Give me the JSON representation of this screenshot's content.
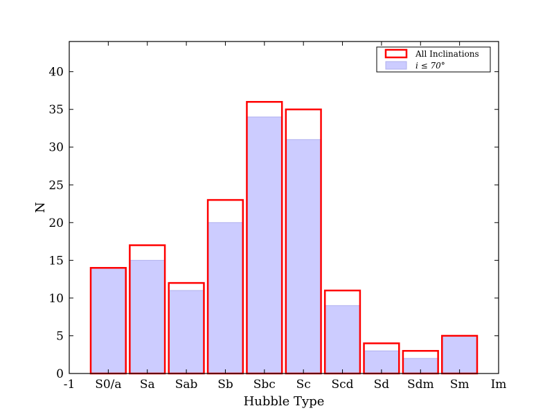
{
  "chart_data": {
    "type": "bar",
    "title": "",
    "xlabel": "Hubble Type",
    "ylabel": "N",
    "x_ticks": [
      "-1",
      "S0/a",
      "Sa",
      "Sab",
      "Sb",
      "Sbc",
      "Sc",
      "Scd",
      "Sd",
      "Sdm",
      "Sm",
      "Im"
    ],
    "categories": [
      "S0/a",
      "Sa",
      "Sab",
      "Sb",
      "Sbc",
      "Sc",
      "Scd",
      "Sd",
      "Sdm",
      "Sm"
    ],
    "y_ticks": [
      "0",
      "5",
      "10",
      "15",
      "20",
      "25",
      "30",
      "35",
      "40"
    ],
    "ylim": [
      0,
      44
    ],
    "grid": false,
    "legend_position": "top-right",
    "series": [
      {
        "name": "All Inclinations",
        "style": "outline",
        "color": "#ff0000",
        "values": [
          14,
          17,
          12,
          23,
          36,
          35,
          11,
          4,
          3,
          5
        ]
      },
      {
        "name": "i ≤ 70°",
        "style": "filled",
        "color": "#ccccff",
        "values": [
          14,
          15,
          11,
          20,
          34,
          31,
          9,
          3,
          2,
          5
        ]
      }
    ]
  }
}
